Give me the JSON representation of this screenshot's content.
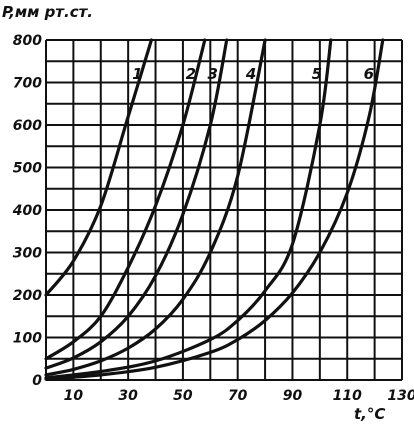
{
  "chart_data": {
    "type": "line",
    "ylabel": "P,мм рт.ст.",
    "xlabel": "t,°C",
    "xlim": [
      0,
      130
    ],
    "ylim": [
      0,
      800
    ],
    "x_ticks": [
      10,
      30,
      50,
      70,
      90,
      110,
      130
    ],
    "y_ticks": [
      0,
      100,
      200,
      300,
      400,
      500,
      600,
      700,
      800
    ],
    "grid": true,
    "series": [
      {
        "name": "1",
        "x": [
          0,
          10,
          20,
          30,
          38.5
        ],
        "y": [
          200,
          280,
          410,
          620,
          800
        ]
      },
      {
        "name": "2",
        "x": [
          0,
          10,
          20,
          30,
          40,
          50,
          58
        ],
        "y": [
          50,
          90,
          150,
          265,
          410,
          600,
          800
        ]
      },
      {
        "name": "3",
        "x": [
          0,
          10,
          20,
          30,
          40,
          50,
          60,
          66
        ],
        "y": [
          28,
          52,
          90,
          150,
          245,
          390,
          600,
          800
        ]
      },
      {
        "name": "4",
        "x": [
          0,
          10,
          20,
          30,
          40,
          50,
          60,
          70,
          80
        ],
        "y": [
          12,
          25,
          45,
          75,
          120,
          190,
          300,
          480,
          800
        ]
      },
      {
        "name": "5",
        "x": [
          0,
          20,
          40,
          60,
          70,
          80,
          90,
          100,
          104
        ],
        "y": [
          5,
          20,
          45,
          95,
          140,
          210,
          320,
          600,
          800
        ]
      },
      {
        "name": "6",
        "x": [
          0,
          20,
          40,
          60,
          70,
          80,
          90,
          100,
          110,
          118,
          123
        ],
        "y": [
          2,
          12,
          30,
          65,
          95,
          140,
          205,
          300,
          440,
          620,
          800
        ]
      }
    ]
  }
}
